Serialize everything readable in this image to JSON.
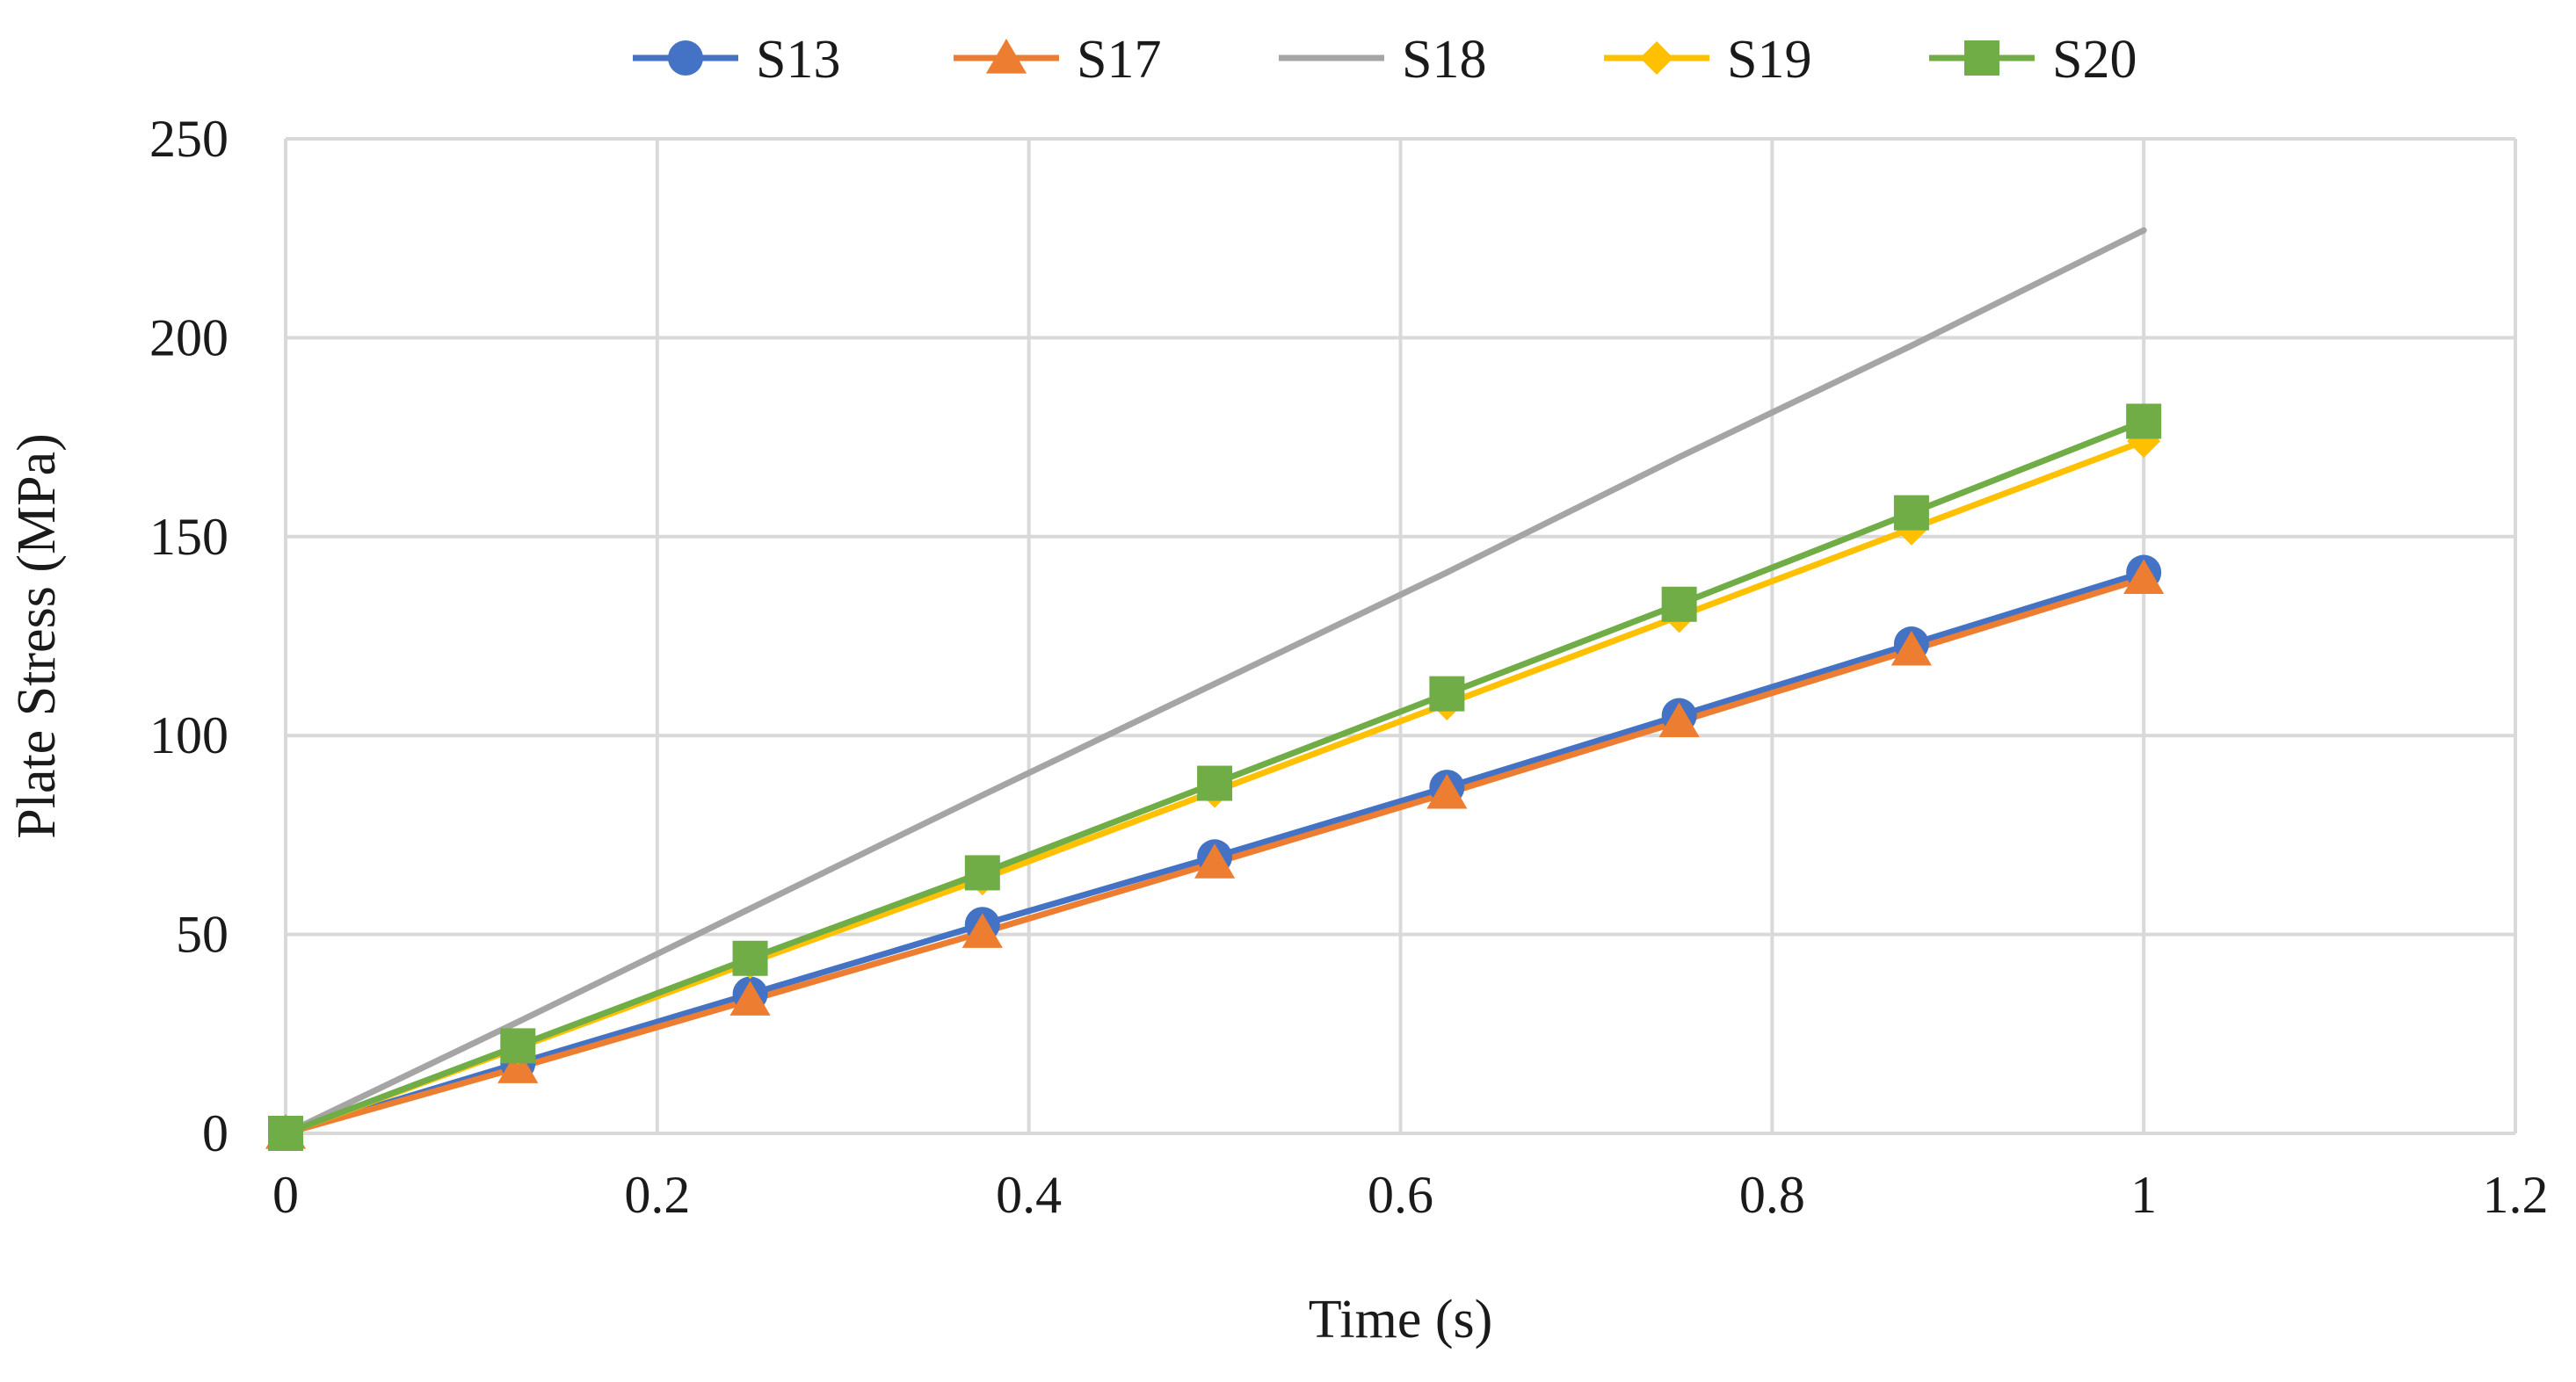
{
  "chart_data": {
    "type": "line",
    "title": "",
    "xlabel": "Time (s)",
    "ylabel": "Plate Stress (MPa)",
    "xlim": [
      0,
      1.2
    ],
    "ylim": [
      0,
      250
    ],
    "x_ticks": [
      0,
      0.2,
      0.4,
      0.6,
      0.8,
      1,
      1.2
    ],
    "x_tick_labels": [
      "0",
      "0.2",
      "0.4",
      "0.6",
      "0.8",
      "1",
      "1.2"
    ],
    "y_ticks": [
      0,
      50,
      100,
      150,
      200,
      250
    ],
    "y_tick_labels": [
      "0",
      "50",
      "100",
      "150",
      "200",
      "250"
    ],
    "grid": true,
    "legend_position": "top",
    "x": [
      0,
      0.125,
      0.25,
      0.375,
      0.5,
      0.625,
      0.75,
      0.875,
      1
    ],
    "series": [
      {
        "name": "S13",
        "color": "#4472C4",
        "marker": "circle",
        "values": [
          0,
          17.6,
          35,
          52.5,
          69.5,
          87,
          105,
          123,
          141
        ]
      },
      {
        "name": "S17",
        "color": "#ED7D31",
        "marker": "triangle",
        "values": [
          0,
          16.5,
          33.5,
          50.5,
          68,
          85.5,
          103.5,
          121.5,
          139.5
        ]
      },
      {
        "name": "S18",
        "color": "#A5A5A5",
        "marker": "none",
        "values": [
          0,
          28,
          56.5,
          85,
          113,
          141,
          170,
          198,
          227
        ]
      },
      {
        "name": "S19",
        "color": "#FFC000",
        "marker": "diamond",
        "values": [
          0,
          21.5,
          43,
          64,
          86,
          108,
          130,
          152,
          174
        ]
      },
      {
        "name": "S20",
        "color": "#70AD47",
        "marker": "square",
        "values": [
          0,
          22,
          44,
          65.5,
          88,
          110.5,
          133,
          156,
          179
        ]
      }
    ]
  }
}
